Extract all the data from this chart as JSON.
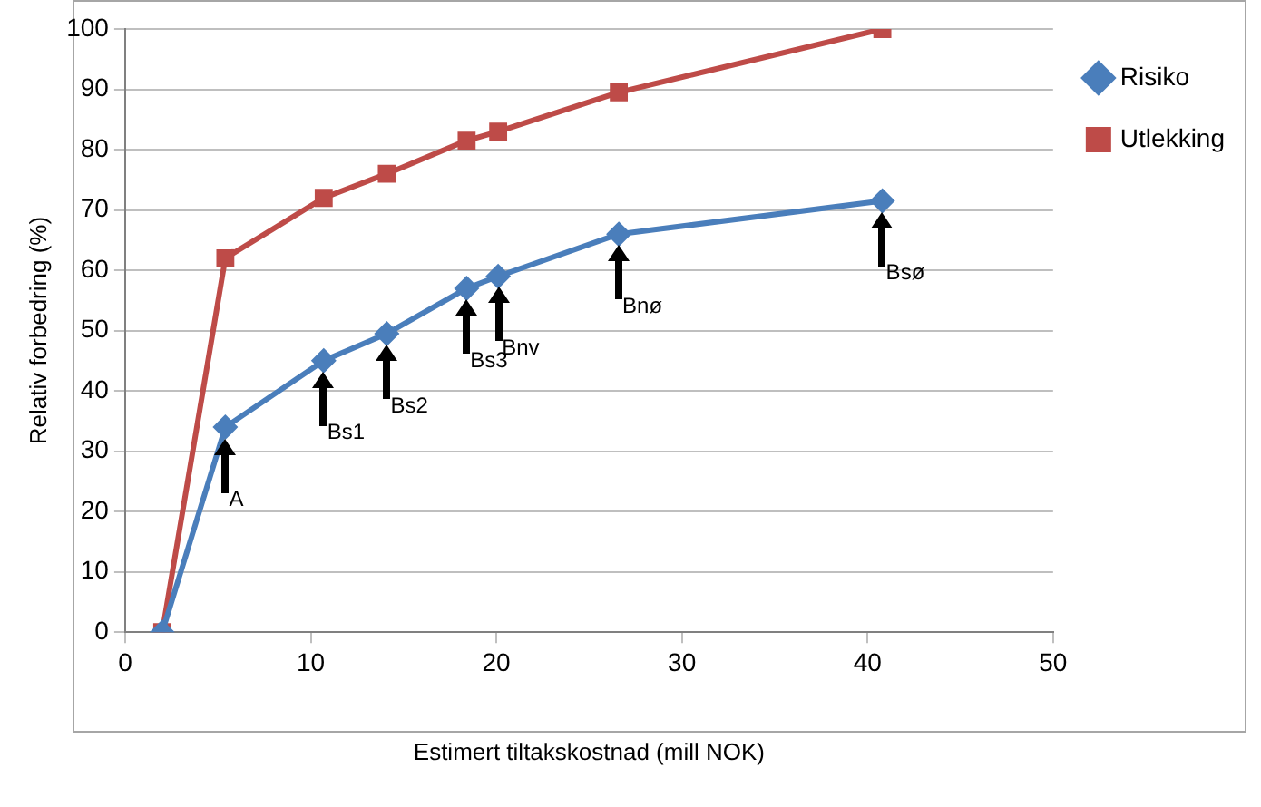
{
  "chart_data": {
    "type": "line",
    "xlabel": "Estimert tiltakskostnad (mill NOK)",
    "ylabel": "Relativ forbedring (%)",
    "x": [
      2.0,
      5.4,
      10.7,
      14.1,
      18.4,
      20.1,
      26.6,
      40.8
    ],
    "series": [
      {
        "name": "Risiko",
        "color": "#4a7ebb",
        "marker": "diamond",
        "values": [
          0,
          34,
          45,
          49.5,
          57,
          59,
          66,
          71.5
        ]
      },
      {
        "name": "Utlekking",
        "color": "#be4b48",
        "marker": "square",
        "values": [
          0,
          62,
          72,
          76,
          81.5,
          83,
          89.5,
          100
        ]
      }
    ],
    "xlim": [
      0,
      50
    ],
    "xticks": [
      0,
      10,
      20,
      30,
      40,
      50
    ],
    "ylim": [
      0,
      100
    ],
    "yticks": [
      0,
      10,
      20,
      30,
      40,
      50,
      60,
      70,
      80,
      90,
      100
    ],
    "grid": "y",
    "legend": "top right",
    "line_style": "solid",
    "annotations": [
      {
        "text": "A",
        "x": 5.4,
        "y": 34
      },
      {
        "text": "Bs1",
        "x": 10.7,
        "y": 45
      },
      {
        "text": "Bs2",
        "x": 14.1,
        "y": 49.5
      },
      {
        "text": "Bs3",
        "x": 18.4,
        "y": 57
      },
      {
        "text": "Bnv",
        "x": 20.1,
        "y": 59
      },
      {
        "text": "Bnø",
        "x": 26.6,
        "y": 66
      },
      {
        "text": "Bsø",
        "x": 40.8,
        "y": 71.5
      }
    ]
  }
}
